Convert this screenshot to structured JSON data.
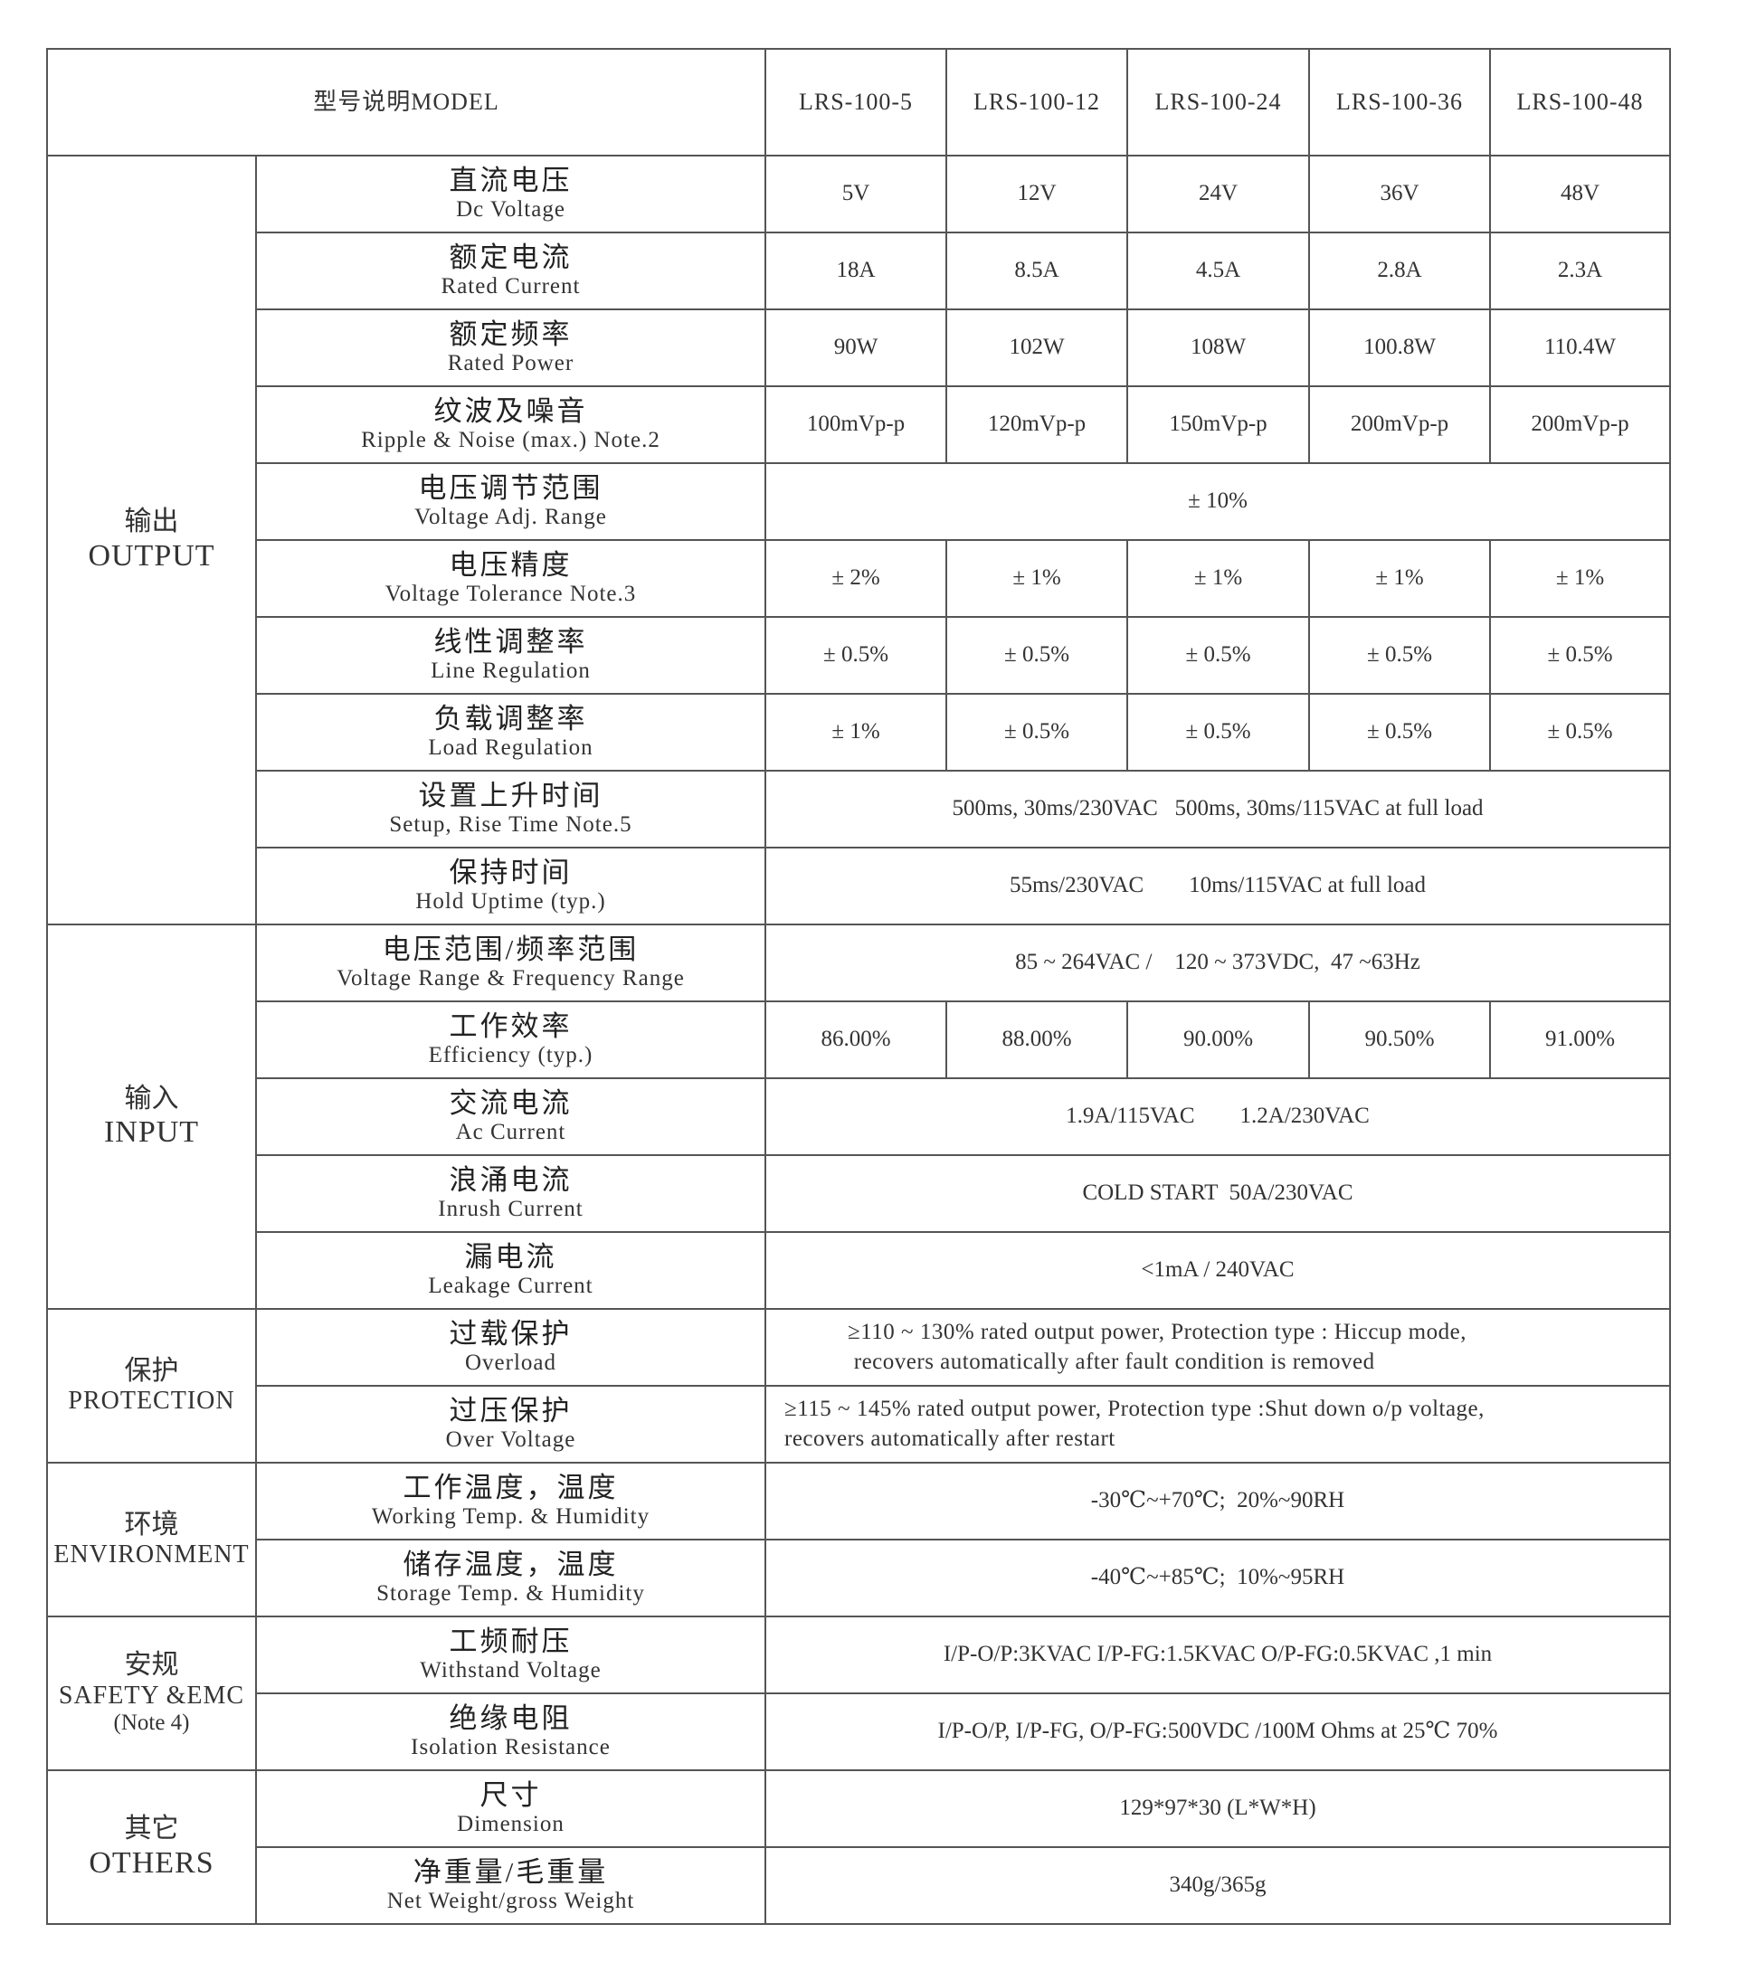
{
  "header": {
    "model_label": "型号说明MODEL",
    "models": [
      "LRS-100-5",
      "LRS-100-12",
      "LRS-100-24",
      "LRS-100-36",
      "LRS-100-48"
    ]
  },
  "groups": [
    {
      "cn": "输出",
      "en": "OUTPUT",
      "rows": [
        {
          "cn": "直流电压",
          "en": "Dc Voltage",
          "values": [
            "5V",
            "12V",
            "24V",
            "36V",
            "48V"
          ]
        },
        {
          "cn": "额定电流",
          "en": "Rated Current",
          "values": [
            "18A",
            "8.5A",
            "4.5A",
            "2.8A",
            "2.3A"
          ]
        },
        {
          "cn": "额定频率",
          "en": "Rated Power",
          "values": [
            "90W",
            "102W",
            "108W",
            "100.8W",
            "110.4W"
          ]
        },
        {
          "cn": "纹波及噪音",
          "en": "Ripple & Noise (max.) Note.2",
          "values": [
            "100mVp-p",
            "120mVp-p",
            "150mVp-p",
            "200mVp-p",
            "200mVp-p"
          ]
        },
        {
          "cn": "电压调节范围",
          "en": "Voltage Adj. Range",
          "span": "± 10%"
        },
        {
          "cn": "电压精度",
          "en": "Voltage Tolerance Note.3",
          "values": [
            "± 2%",
            "± 1%",
            "± 1%",
            "± 1%",
            "± 1%"
          ]
        },
        {
          "cn": "线性调整率",
          "en": "Line Regulation",
          "values": [
            "± 0.5%",
            "± 0.5%",
            "± 0.5%",
            "± 0.5%",
            "± 0.5%"
          ]
        },
        {
          "cn": "负载调整率",
          "en": "Load Regulation",
          "values": [
            "± 1%",
            "± 0.5%",
            "± 0.5%",
            "± 0.5%",
            "± 0.5%"
          ]
        },
        {
          "cn": "设置上升时间",
          "en": "Setup, Rise Time Note.5",
          "span": "500ms, 30ms/230VAC   500ms, 30ms/115VAC at full load"
        },
        {
          "cn": "保持时间",
          "en": "Hold Uptime (typ.)",
          "span": "55ms/230VAC        10ms/115VAC at full load"
        }
      ]
    },
    {
      "cn": "输入",
      "en": "INPUT",
      "rows": [
        {
          "cn": "电压范围/频率范围",
          "en": "Voltage Range & Frequency Range",
          "span": "85 ~ 264VAC /    120 ~ 373VDC,  47 ~63Hz"
        },
        {
          "cn": "工作效率",
          "en": "Efficiency (typ.)",
          "values": [
            "86.00%",
            "88.00%",
            "90.00%",
            "90.50%",
            "91.00%"
          ]
        },
        {
          "cn": "交流电流",
          "en": "Ac Current",
          "span": "1.9A/115VAC        1.2A/230VAC"
        },
        {
          "cn": "浪涌电流",
          "en": "Inrush Current",
          "span": "COLD START  50A/230VAC"
        },
        {
          "cn": "漏电流",
          "en": "Leakage Current",
          "span": "<1mA / 240VAC"
        }
      ]
    },
    {
      "cn": "保护",
      "en": "PROTECTION",
      "rows": [
        {
          "cn": "过载保护",
          "en": "Overload",
          "lines": [
            "≥110 ~ 130% rated output power, Protection type : Hiccup mode,",
            " recovers automatically after fault condition is removed"
          ]
        },
        {
          "cn": "过压保护",
          "en": "Over Voltage",
          "lines": [
            "≥115 ~ 145% rated output power, Protection type :Shut down o/p voltage,",
            "recovers automatically after restart"
          ]
        }
      ]
    },
    {
      "cn": "环境",
      "en": "ENVIRONMENT",
      "rows": [
        {
          "cn": "工作温度，温度",
          "en": "Working Temp. & Humidity",
          "span": "-30℃~+70℃;  20%~90RH"
        },
        {
          "cn": "储存温度，温度",
          "en": "Storage Temp. & Humidity",
          "span": "-40℃~+85℃;  10%~95RH"
        }
      ]
    },
    {
      "cn": "安规",
      "en": "SAFETY &EMC",
      "note": "(Note 4)",
      "rows": [
        {
          "cn": "工频耐压",
          "en": "Withstand Voltage",
          "span": "I/P-O/P:3KVAC I/P-FG:1.5KVAC O/P-FG:0.5KVAC ,1 min"
        },
        {
          "cn": "绝缘电阻",
          "en": "Isolation Resistance",
          "span": "I/P-O/P, I/P-FG, O/P-FG:500VDC /100M Ohms at 25℃ 70%"
        }
      ]
    },
    {
      "cn": "其它",
      "en": "OTHERS",
      "rows": [
        {
          "cn": "尺寸",
          "en": "Dimension",
          "span": "129*97*30 (L*W*H)"
        },
        {
          "cn": "净重量/毛重量",
          "en": "Net Weight/gross Weight",
          "span": "340g/365g"
        }
      ]
    }
  ]
}
